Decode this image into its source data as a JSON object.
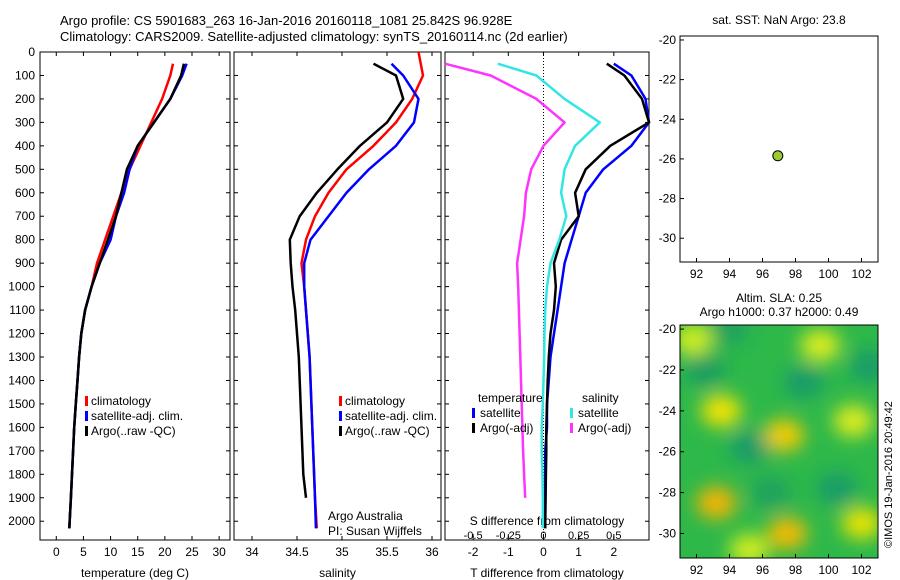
{
  "title_line1": "Argo profile: CS 5901683_263 16-Jan-2016 20160118_1081 25.842S 96.928E",
  "title_line2": "Climatology: CARS2009. Satellite-adjusted climatology: synTS_20160114.nc (2d earlier)",
  "credit": "©IMOS 19-Jan-2016 20:49:42",
  "colors": {
    "climatology": "#ff0000",
    "satellite": "#0000ff",
    "argo": "#000000",
    "sat_salinity": "#33e6e6",
    "argo_salinity": "#ff33ff",
    "marker": "#99cc33"
  },
  "chart_data": [
    {
      "type": "line",
      "panel": "temperature",
      "xlabel": "temperature (deg C)",
      "ylabel": "",
      "xlim": [
        -3,
        32
      ],
      "ylim": [
        2080,
        0
      ],
      "xticks": [
        0,
        5,
        10,
        15,
        20,
        25,
        30
      ],
      "yticks": [
        0,
        100,
        200,
        300,
        400,
        500,
        600,
        700,
        800,
        900,
        1000,
        1100,
        1200,
        1300,
        1400,
        1500,
        1600,
        1700,
        1800,
        1900,
        2000
      ],
      "legend": [
        "climatology",
        "satellite-adj. clim.",
        "Argo(..raw -QC)"
      ],
      "series": [
        {
          "name": "climatology",
          "color": "#ff0000",
          "x": [
            21.5,
            21,
            19.5,
            17.5,
            15.5,
            13.5,
            12,
            10.5,
            9,
            7.5,
            6.5,
            5.3,
            4.6,
            4.2,
            3.9,
            3.6,
            3.3,
            3.1,
            2.9,
            2.7,
            2.4
          ],
          "y": [
            50,
            100,
            200,
            300,
            400,
            500,
            600,
            700,
            800,
            900,
            1000,
            1100,
            1200,
            1300,
            1400,
            1500,
            1600,
            1700,
            1800,
            1900,
            2030
          ]
        },
        {
          "name": "satellite-adj. clim.",
          "color": "#0000ff",
          "x": [
            24,
            23.2,
            21,
            18,
            15,
            13.5,
            12.5,
            11,
            10,
            8,
            6.5,
            5.3,
            4.6,
            4.2,
            3.9,
            3.6,
            3.3,
            3.1,
            2.9,
            2.7,
            2.4
          ],
          "y": [
            50,
            100,
            200,
            300,
            400,
            500,
            600,
            700,
            800,
            900,
            1000,
            1100,
            1200,
            1300,
            1400,
            1500,
            1600,
            1700,
            1800,
            1900,
            2030
          ]
        },
        {
          "name": "Argo(..raw -QC)",
          "color": "#000000",
          "x": [
            23.5,
            23,
            21,
            18,
            15,
            13,
            12,
            11,
            9.5,
            8,
            6.5,
            5.3,
            4.6,
            4.2,
            3.9,
            3.6,
            3.3,
            3.1,
            2.9,
            2.7,
            2.4
          ],
          "y": [
            50,
            100,
            200,
            300,
            400,
            500,
            600,
            700,
            800,
            900,
            1000,
            1100,
            1200,
            1300,
            1400,
            1500,
            1600,
            1700,
            1800,
            1900,
            2030
          ]
        }
      ]
    },
    {
      "type": "line",
      "panel": "salinity",
      "xlabel": "salinity",
      "xlim": [
        33.8,
        36.1
      ],
      "ylim": [
        2080,
        0
      ],
      "xticks": [
        34,
        34.5,
        35,
        35.5,
        36
      ],
      "legend": [
        "climatology",
        "satellite-adj. clim.",
        "Argo(..raw -QC)"
      ],
      "annotation": [
        "Argo Australia",
        "PI: Susan Wijffels"
      ],
      "series": [
        {
          "name": "climatology",
          "color": "#ff0000",
          "x": [
            35.85,
            35.9,
            35.78,
            35.6,
            35.35,
            35.05,
            34.85,
            34.7,
            34.6,
            34.55,
            34.58,
            34.6,
            34.62,
            34.64,
            34.65,
            34.66,
            34.67,
            34.68,
            34.69,
            34.7,
            34.72
          ],
          "y": [
            0,
            100,
            200,
            300,
            400,
            500,
            600,
            700,
            800,
            900,
            1000,
            1100,
            1200,
            1300,
            1400,
            1500,
            1600,
            1700,
            1800,
            1900,
            2030
          ]
        },
        {
          "name": "satellite-adj. clim.",
          "color": "#0000ff",
          "x": [
            35.55,
            35.68,
            35.85,
            35.8,
            35.6,
            35.3,
            35.05,
            34.85,
            34.65,
            34.58,
            34.58,
            34.6,
            34.62,
            34.64,
            34.65,
            34.66,
            34.67,
            34.68,
            34.69,
            34.7,
            34.71
          ],
          "y": [
            50,
            100,
            200,
            300,
            400,
            500,
            600,
            700,
            800,
            900,
            1000,
            1100,
            1200,
            1300,
            1400,
            1500,
            1600,
            1700,
            1800,
            1900,
            2030
          ]
        },
        {
          "name": "Argo(..raw -QC)",
          "color": "#000000",
          "x": [
            35.35,
            35.6,
            35.68,
            35.5,
            35.2,
            34.95,
            34.72,
            34.53,
            34.42,
            34.43,
            34.45,
            34.48,
            34.5,
            34.52,
            34.53,
            34.54,
            34.55,
            34.56,
            34.57,
            34.6
          ],
          "y": [
            50,
            100,
            200,
            300,
            400,
            500,
            600,
            700,
            800,
            900,
            1000,
            1100,
            1200,
            1300,
            1400,
            1500,
            1600,
            1700,
            1800,
            1900
          ]
        }
      ]
    },
    {
      "type": "line",
      "panel": "difference",
      "xlabel": "T difference from climatology",
      "xlabel_top": "S difference from climatology",
      "xlim": [
        -2.8,
        3
      ],
      "ylim": [
        2080,
        0
      ],
      "xticks": [
        -2,
        -1,
        0,
        1,
        2
      ],
      "sticks": [
        -0.5,
        -0.25,
        0,
        0.25,
        0.5
      ],
      "legend_headers": [
        "temperature",
        "salinity"
      ],
      "legend": [
        "satellite",
        "Argo(-adj)",
        "satellite",
        "Argo(-adj)"
      ],
      "series": [
        {
          "name": "satellite",
          "color": "#0000ff",
          "x": [
            2,
            2.5,
            2.9,
            3,
            2.5,
            1.7,
            1.2,
            1.0,
            0.8,
            0.6,
            0.5,
            0.4,
            0.3,
            0.2,
            0.15,
            0.1,
            0.1,
            0.05,
            0.05,
            0.05,
            0.05
          ],
          "y": [
            50,
            100,
            200,
            300,
            400,
            500,
            600,
            700,
            800,
            900,
            1000,
            1100,
            1200,
            1300,
            1400,
            1500,
            1600,
            1700,
            1800,
            1900,
            2030
          ]
        },
        {
          "name": "Argo(-adj)",
          "color": "#000000",
          "x": [
            1.8,
            2.3,
            2.8,
            3,
            1.9,
            1.2,
            0.9,
            1.0,
            0.5,
            0.3,
            0.35,
            0.3,
            0.2,
            0.15,
            0.12,
            0.1,
            0.08,
            0.08,
            0.07,
            0.06,
            0.05
          ],
          "y": [
            50,
            100,
            200,
            300,
            400,
            500,
            600,
            700,
            800,
            900,
            1000,
            1100,
            1200,
            1300,
            1400,
            1500,
            1600,
            1700,
            1800,
            1900,
            2030
          ]
        },
        {
          "name": "satellite",
          "color": "#33e6e6",
          "x": [
            -1.3,
            -0.2,
            0.6,
            1.6,
            0.9,
            0.6,
            0.5,
            0.65,
            0.45,
            0.2,
            0.1,
            0.05,
            0.03,
            0.02,
            0,
            -0.02,
            -0.05,
            -0.05,
            -0.03,
            -0.02,
            -0.02
          ],
          "y": [
            50,
            100,
            200,
            300,
            400,
            500,
            600,
            700,
            800,
            900,
            1000,
            1100,
            1200,
            1300,
            1400,
            1500,
            1600,
            1700,
            1800,
            1900,
            2030
          ]
        },
        {
          "name": "Argo(-adj)",
          "color": "#ff33ff",
          "x": [
            -2.8,
            -1.5,
            -0.2,
            0.6,
            0,
            -0.35,
            -0.5,
            -0.55,
            -0.65,
            -0.75,
            -0.72,
            -0.7,
            -0.68,
            -0.66,
            -0.64,
            -0.62,
            -0.6,
            -0.58,
            -0.55,
            -0.52
          ],
          "y": [
            50,
            100,
            200,
            300,
            400,
            500,
            600,
            700,
            800,
            900,
            1000,
            1100,
            1200,
            1300,
            1400,
            1500,
            1600,
            1700,
            1800,
            1900
          ]
        }
      ]
    },
    {
      "type": "scatter",
      "panel": "position",
      "title": "sat. SST: NaN Argo: 23.8",
      "xlim": [
        91,
        103
      ],
      "ylim": [
        -31.2,
        -19.8
      ],
      "xticks": [
        92,
        94,
        96,
        98,
        100,
        102
      ],
      "yticks": [
        -20,
        -22,
        -24,
        -26,
        -28,
        -30
      ],
      "points": [
        {
          "x": 96.928,
          "y": -25.842
        }
      ]
    },
    {
      "type": "heatmap",
      "panel": "sla",
      "title_lines": [
        "Altim. SLA: 0.25",
        "Argo h1000: 0.37 h2000: 0.49"
      ],
      "xlim": [
        91,
        103
      ],
      "ylim": [
        -31.2,
        -19.8
      ],
      "xticks": [
        92,
        94,
        96,
        98,
        100,
        102
      ],
      "yticks": [
        -20,
        -22,
        -24,
        -26,
        -28,
        -30
      ],
      "base_color": "#2eb84a",
      "blobs": [
        {
          "x": 93.5,
          "y": -24.0,
          "c": "#ffe600"
        },
        {
          "x": 97.3,
          "y": -25.2,
          "c": "#ffcc00"
        },
        {
          "x": 97.5,
          "y": -30.0,
          "c": "#ffbb00"
        },
        {
          "x": 93.2,
          "y": -28.5,
          "c": "#ffb400"
        },
        {
          "x": 101.5,
          "y": -24.5,
          "c": "#e6ef20"
        },
        {
          "x": 102.0,
          "y": -29.5,
          "c": "#f2e600"
        },
        {
          "x": 99.5,
          "y": -20.8,
          "c": "#e6ef20"
        },
        {
          "x": 91.8,
          "y": -20.5,
          "c": "#d9f020"
        },
        {
          "x": 95.2,
          "y": -30.8,
          "c": "#d9f020"
        },
        {
          "x": 95.2,
          "y": -25.8,
          "c": "#149a6b"
        },
        {
          "x": 98.5,
          "y": -22.6,
          "c": "#149a6b"
        },
        {
          "x": 100.5,
          "y": -27.8,
          "c": "#149a6b"
        },
        {
          "x": 102.5,
          "y": -21.8,
          "c": "#149a6b"
        },
        {
          "x": 92.5,
          "y": -22.0,
          "c": "#189c63"
        },
        {
          "x": 96.5,
          "y": -28.0,
          "c": "#1ba060"
        },
        {
          "x": 94.0,
          "y": -20.0,
          "c": "#1aa060"
        }
      ]
    }
  ]
}
